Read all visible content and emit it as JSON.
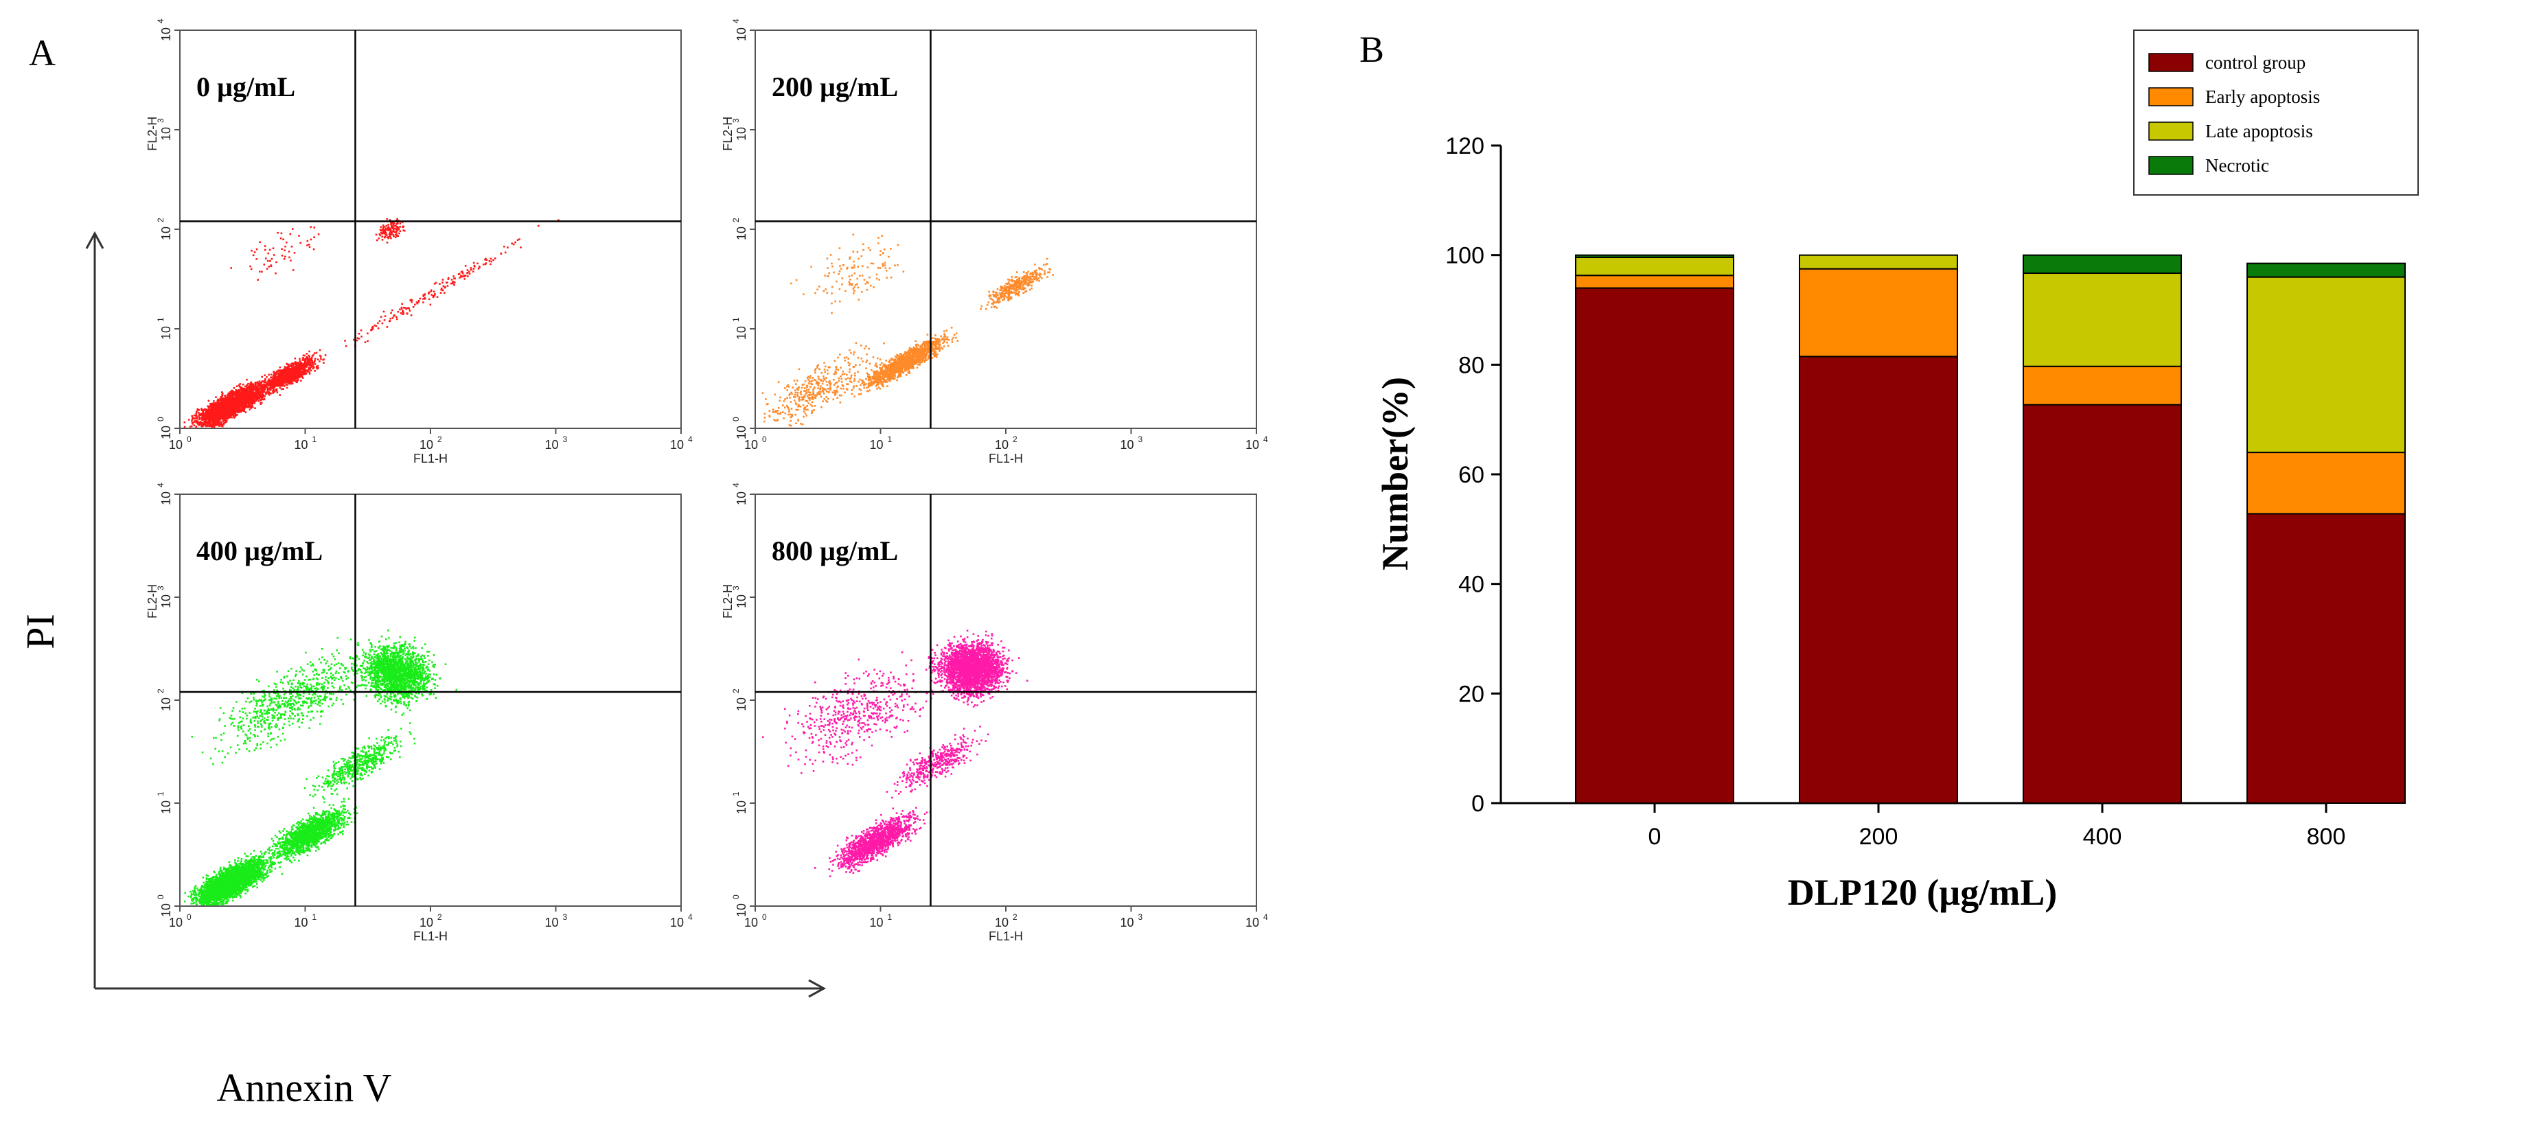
{
  "panel_a": {
    "letter": "A",
    "y_axis_title": "PI",
    "x_axis_title": "Annexin V",
    "plots": [
      {
        "label": "0 µg/mL",
        "color": "#ff1a1a"
      },
      {
        "label": "200 µg/mL",
        "color": "#ff8a2a"
      },
      {
        "label": "400 µg/mL",
        "color": "#19ec19"
      },
      {
        "label": "800 µg/mL",
        "color": "#ff1aa8"
      }
    ],
    "x_axis_name": "FL1-H",
    "y_axis_name": "FL2-H",
    "tick_base": "10",
    "tick_exponents": [
      "0",
      "1",
      "2",
      "3",
      "4"
    ]
  },
  "chart_data": {
    "type": "bar",
    "stacked": true,
    "panel_letter": "B",
    "title": "",
    "xlabel": "DLP120 (µg/mL)",
    "ylabel": "Number(%)",
    "categories": [
      "0",
      "200",
      "400",
      "800"
    ],
    "ylim": [
      0,
      120
    ],
    "yticks": [
      "0",
      "20",
      "40",
      "60",
      "80",
      "100",
      "120"
    ],
    "series": [
      {
        "name": "control group",
        "color": "#8b0000",
        "values": [
          94,
          81.5,
          72.7,
          52.8
        ]
      },
      {
        "name": "Early apoptosis",
        "color": "#ff8a00",
        "values": [
          2.3,
          16,
          7,
          11.2
        ]
      },
      {
        "name": "Late apoptosis",
        "color": "#c8c800",
        "values": [
          3.3,
          2.5,
          17,
          32
        ]
      },
      {
        "name": "Necrotic",
        "color": "#0a7a0a",
        "values": [
          0.4,
          0,
          3.3,
          2.5
        ]
      }
    ],
    "legend_position": "top-right"
  }
}
